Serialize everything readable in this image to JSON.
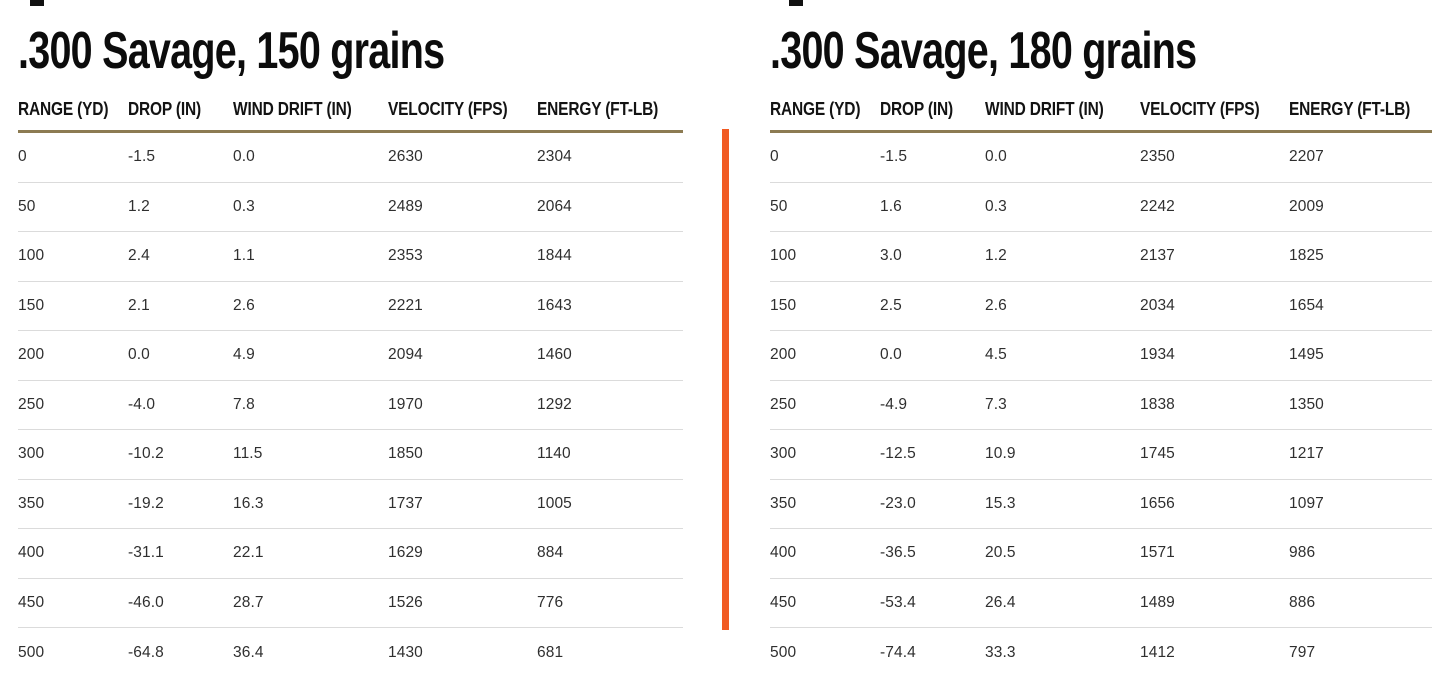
{
  "colors": {
    "divider_orange": "#F15A22",
    "header_underline_tan": "#8C7B52",
    "row_separator_gray": "#DBDBDB",
    "title_black": "#0C0C0C",
    "cell_text": "#2F2F2F"
  },
  "chart_data": [
    {
      "type": "table",
      "title": ".300 Savage, 150 grains",
      "columns": [
        "RANGE (YD)",
        "DROP (IN)",
        "WIND DRIFT (IN)",
        "VELOCITY (FPS)",
        "ENERGY (FT-LB)"
      ],
      "rows": [
        [
          "0",
          "-1.5",
          "0.0",
          "2630",
          "2304"
        ],
        [
          "50",
          "1.2",
          "0.3",
          "2489",
          "2064"
        ],
        [
          "100",
          "2.4",
          "1.1",
          "2353",
          "1844"
        ],
        [
          "150",
          "2.1",
          "2.6",
          "2221",
          "1643"
        ],
        [
          "200",
          "0.0",
          "4.9",
          "2094",
          "1460"
        ],
        [
          "250",
          "-4.0",
          "7.8",
          "1970",
          "1292"
        ],
        [
          "300",
          "-10.2",
          "11.5",
          "1850",
          "1140"
        ],
        [
          "350",
          "-19.2",
          "16.3",
          "1737",
          "1005"
        ],
        [
          "400",
          "-31.1",
          "22.1",
          "1629",
          "884"
        ],
        [
          "450",
          "-46.0",
          "28.7",
          "1526",
          "776"
        ],
        [
          "500",
          "-64.8",
          "36.4",
          "1430",
          "681"
        ]
      ]
    },
    {
      "type": "table",
      "title": ".300 Savage, 180 grains",
      "columns": [
        "RANGE (YD)",
        "DROP (IN)",
        "WIND DRIFT (IN)",
        "VELOCITY (FPS)",
        "ENERGY (FT-LB)"
      ],
      "rows": [
        [
          "0",
          "-1.5",
          "0.0",
          "2350",
          "2207"
        ],
        [
          "50",
          "1.6",
          "0.3",
          "2242",
          "2009"
        ],
        [
          "100",
          "3.0",
          "1.2",
          "2137",
          "1825"
        ],
        [
          "150",
          "2.5",
          "2.6",
          "2034",
          "1654"
        ],
        [
          "200",
          "0.0",
          "4.5",
          "1934",
          "1495"
        ],
        [
          "250",
          "-4.9",
          "7.3",
          "1838",
          "1350"
        ],
        [
          "300",
          "-12.5",
          "10.9",
          "1745",
          "1217"
        ],
        [
          "350",
          "-23.0",
          "15.3",
          "1656",
          "1097"
        ],
        [
          "400",
          "-36.5",
          "20.5",
          "1571",
          "986"
        ],
        [
          "450",
          "-53.4",
          "26.4",
          "1489",
          "886"
        ],
        [
          "500",
          "-74.4",
          "33.3",
          "1412",
          "797"
        ]
      ]
    }
  ]
}
